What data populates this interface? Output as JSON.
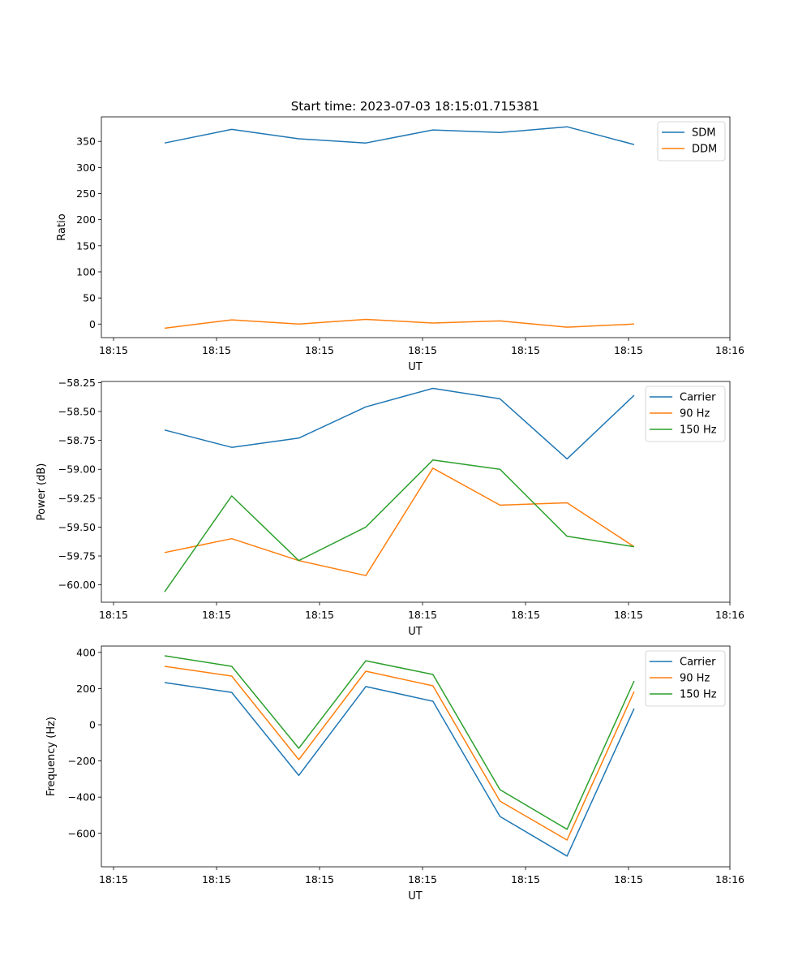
{
  "colors": {
    "blue": "#1f77b4",
    "orange": "#ff7f0e",
    "green": "#2ca02c"
  },
  "chart_data": [
    {
      "type": "line",
      "title": "Start time: 2023-07-03 18:15:01.715381",
      "xlabel": "UT",
      "ylabel": "Ratio",
      "x": [
        0,
        1,
        2,
        3,
        4,
        5,
        6,
        7
      ],
      "xticklabels": [
        "18:15",
        "18:15",
        "18:15",
        "18:15",
        "18:15",
        "18:15",
        "18:16"
      ],
      "yticks": [
        0,
        50,
        100,
        150,
        200,
        250,
        300,
        350
      ],
      "ylim": [
        -26,
        397
      ],
      "legend": "top-right",
      "series": [
        {
          "name": "SDM",
          "color": "#1f77b4",
          "values": [
            347,
            373,
            355,
            347,
            372,
            367,
            378,
            344
          ]
        },
        {
          "name": "DDM",
          "color": "#ff7f0e",
          "values": [
            -8,
            8,
            0,
            9,
            2,
            6,
            -6,
            0
          ]
        }
      ]
    },
    {
      "type": "line",
      "title": "",
      "xlabel": "UT",
      "ylabel": "Power (dB)",
      "x": [
        0,
        1,
        2,
        3,
        4,
        5,
        6,
        7
      ],
      "xticklabels": [
        "18:15",
        "18:15",
        "18:15",
        "18:15",
        "18:15",
        "18:15",
        "18:16"
      ],
      "yticks": [
        -60.0,
        -59.75,
        -59.5,
        -59.25,
        -59.0,
        -58.75,
        -58.5,
        -58.25
      ],
      "yticklabels": [
        "−60.00",
        "−59.75",
        "−59.50",
        "−59.25",
        "−59.00",
        "−58.75",
        "−58.50",
        "−58.25"
      ],
      "ylim": [
        -60.15,
        -58.24
      ],
      "legend": "top-right",
      "series": [
        {
          "name": "Carrier",
          "color": "#1f77b4",
          "values": [
            -58.66,
            -58.81,
            -58.73,
            -58.46,
            -58.3,
            -58.39,
            -58.91,
            -58.36
          ]
        },
        {
          "name": "90 Hz",
          "color": "#ff7f0e",
          "values": [
            -59.72,
            -59.6,
            -59.79,
            -59.92,
            -58.99,
            -59.31,
            -59.29,
            -59.67
          ]
        },
        {
          "name": "150 Hz",
          "color": "#2ca02c",
          "values": [
            -60.06,
            -59.23,
            -59.79,
            -59.5,
            -58.92,
            -59.0,
            -59.58,
            -59.67
          ]
        }
      ]
    },
    {
      "type": "line",
      "title": "",
      "xlabel": "UT",
      "ylabel": "Frequency (Hz)",
      "x": [
        0,
        1,
        2,
        3,
        4,
        5,
        6,
        7
      ],
      "xticklabels": [
        "18:15",
        "18:15",
        "18:15",
        "18:15",
        "18:15",
        "18:15",
        "18:16"
      ],
      "yticks": [
        -600,
        -400,
        -200,
        0,
        200,
        400
      ],
      "yticklabels": [
        "−600",
        "−400",
        "−200",
        "0",
        "200",
        "400"
      ],
      "ylim": [
        -785,
        435
      ],
      "legend": "top-right",
      "series": [
        {
          "name": "Carrier",
          "color": "#1f77b4",
          "values": [
            233,
            179,
            -280,
            211,
            130,
            -507,
            -726,
            90
          ]
        },
        {
          "name": "90 Hz",
          "color": "#ff7f0e",
          "values": [
            323,
            269,
            -193,
            296,
            215,
            -422,
            -637,
            184
          ]
        },
        {
          "name": "150 Hz",
          "color": "#2ca02c",
          "values": [
            381,
            323,
            -130,
            354,
            278,
            -359,
            -578,
            242
          ]
        }
      ]
    }
  ]
}
